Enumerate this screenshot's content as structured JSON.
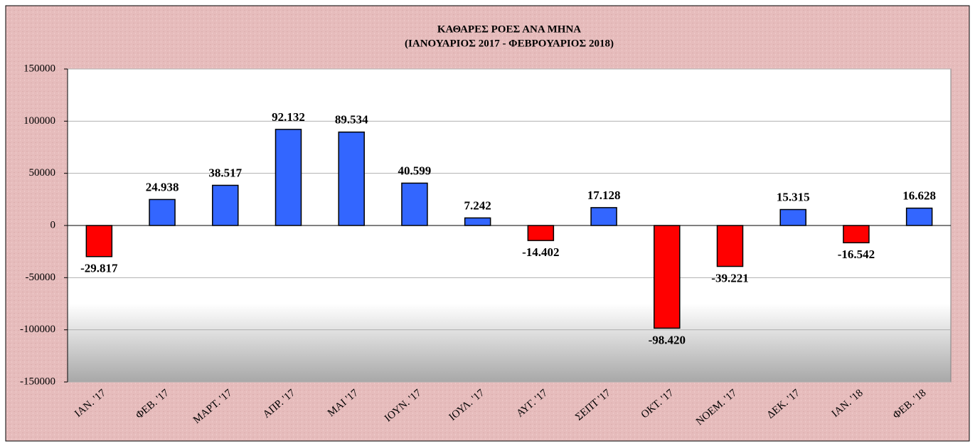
{
  "chart_data": {
    "type": "bar",
    "title": "ΚΑΘΑΡΕΣ ΡΟΕΣ ΑΝΑ ΜΗΝΑ",
    "subtitle": "(ΙΑΝΟΥΑΡΙΟΣ 2017  -  ΦΕΒΡΟΥΑΡΙΟΣ  2018)",
    "categories": [
      "ΙΑΝ. '17",
      "ΦΕΒ. '17",
      "ΜΑΡΤ. '17",
      "ΑΠΡ. '17",
      "ΜΑΙ '17",
      "ΙΟΥΝ. '17",
      "ΙΟΥΛ. '17",
      "ΑΥΓ. '17",
      "ΣΕΠΤ '17",
      "ΟΚΤ. '17",
      "ΝΟΕΜ. '17",
      "ΔΕΚ. '17",
      "ΙΑΝ. '18",
      "ΦΕΒ. '18"
    ],
    "values": [
      -29817,
      24938,
      38517,
      92132,
      89534,
      40599,
      7242,
      -14402,
      17128,
      -98420,
      -39221,
      15315,
      -16542,
      16628
    ],
    "value_labels": [
      "-29.817",
      "24.938",
      "38.517",
      "92.132",
      "89.534",
      "40.599",
      "7.242",
      "-14.402",
      "17.128",
      "-98.420",
      "-39.221",
      "15.315",
      "-16.542",
      "16.628"
    ],
    "colors": [
      "#ff0000",
      "#3366ff",
      "#3366ff",
      "#3366ff",
      "#3366ff",
      "#3366ff",
      "#3366ff",
      "#ff0000",
      "#3366ff",
      "#ff0000",
      "#ff0000",
      "#3366ff",
      "#ff0000",
      "#3366ff"
    ],
    "ylim": [
      -150000,
      150000
    ],
    "yticks": [
      -150000,
      -100000,
      -50000,
      0,
      50000,
      100000,
      150000
    ],
    "grid": true
  }
}
